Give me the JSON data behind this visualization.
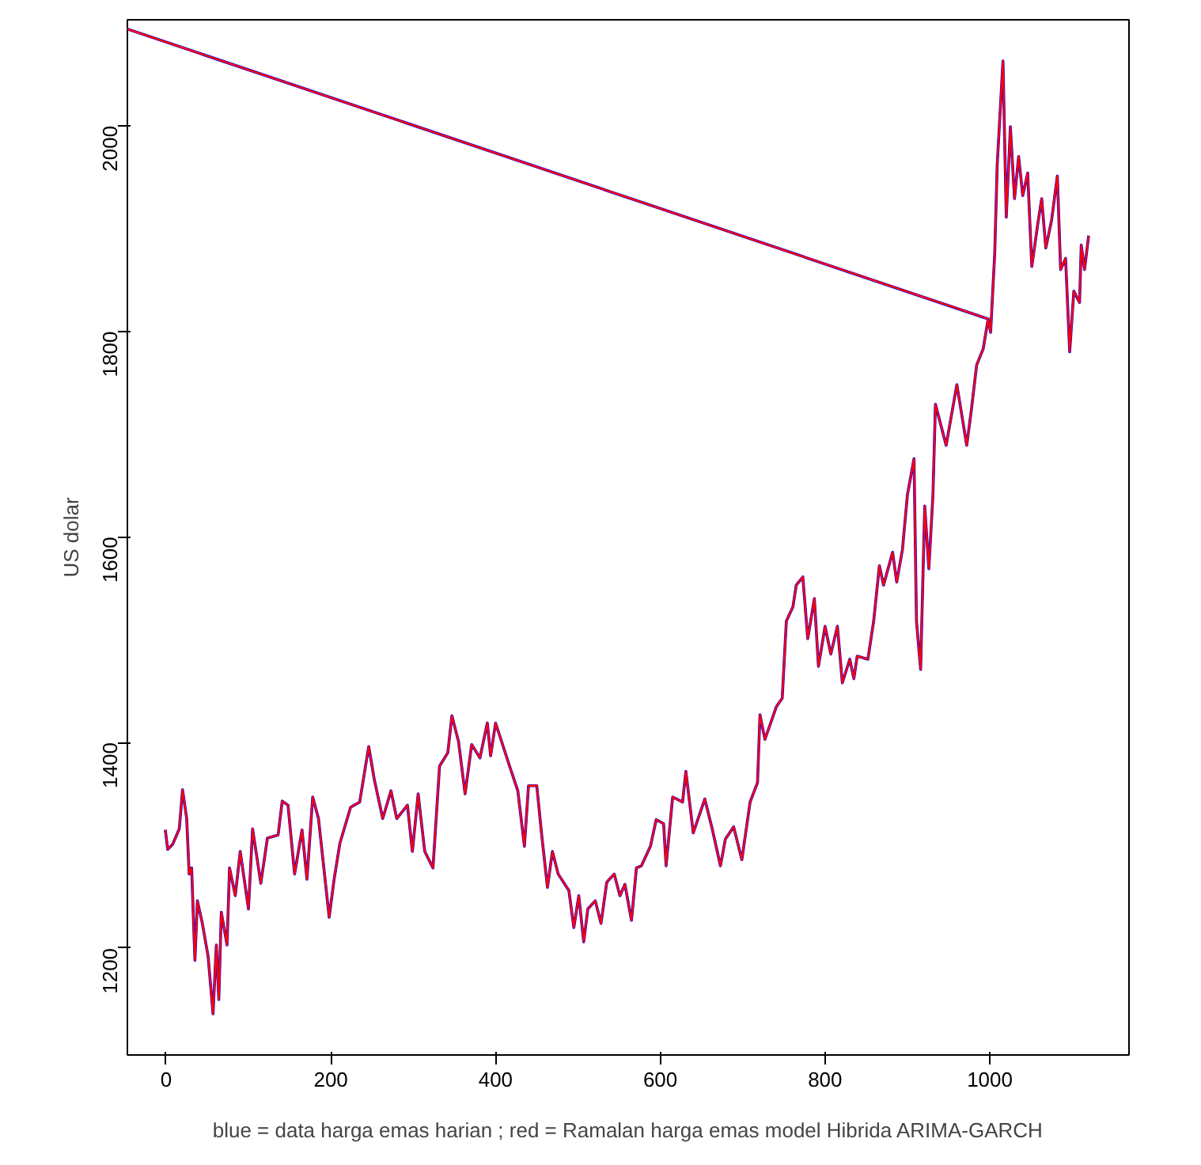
{
  "chart_data": {
    "type": "line",
    "ylabel": "US dolar",
    "annotations": [
      "blue = data harga emas harian ; red = Ramalan harga emas model Hibrida ARIMA-GARCH"
    ],
    "x": [
      -1,
      2,
      8,
      16,
      20,
      25,
      28,
      31,
      35,
      38,
      44,
      51,
      57,
      61,
      64,
      67,
      74,
      77,
      84,
      90,
      100,
      105,
      115,
      123,
      136,
      141,
      148,
      156,
      165,
      171,
      178,
      185,
      198,
      204,
      211,
      224,
      235,
      246,
      253,
      263,
      273,
      280,
      293,
      299,
      306,
      314,
      324,
      332,
      342,
      347,
      355,
      363,
      371,
      381,
      390,
      394,
      400,
      417,
      427,
      435,
      440,
      450,
      456,
      463,
      469,
      476,
      489,
      495,
      501,
      507,
      512,
      521,
      528,
      535,
      544,
      551,
      557,
      565,
      571,
      577,
      588,
      595,
      604,
      607,
      615,
      627,
      631,
      640,
      654,
      663,
      673,
      679,
      689,
      699,
      709,
      718,
      721,
      727,
      741,
      748,
      753,
      761,
      765,
      773,
      779,
      787,
      792,
      800,
      807,
      815,
      821,
      830,
      835,
      839,
      852,
      859,
      866,
      871,
      882,
      887,
      894,
      900,
      908,
      911,
      916,
      921,
      926,
      931,
      934,
      947,
      960,
      972,
      978,
      984,
      992,
      998,
      -47,
      998,
      1001,
      1006,
      1009,
      1016,
      1020,
      1025,
      1030,
      1035,
      1040,
      1046,
      1051,
      1058,
      1063,
      1068,
      1075,
      1082,
      1086,
      1092,
      1097,
      1102,
      1109,
      1111,
      1115,
      1120
    ],
    "series": [
      {
        "color": "#0000ff",
        "values": [
          1315,
          1296,
          1301,
          1316,
          1354,
          1326,
          1272,
          1278,
          1188,
          1246,
          1224,
          1192,
          1136,
          1203,
          1150,
          1235,
          1203,
          1278,
          1251,
          1294,
          1238,
          1316,
          1263,
          1307,
          1310,
          1343,
          1339,
          1272,
          1315,
          1267,
          1347,
          1326,
          1230,
          1267,
          1302,
          1337,
          1342,
          1396,
          1363,
          1326,
          1353,
          1326,
          1339,
          1294,
          1350,
          1294,
          1278,
          1377,
          1390,
          1426,
          1401,
          1350,
          1398,
          1385,
          1419,
          1387,
          1419,
          1377,
          1353,
          1299,
          1358,
          1358,
          1310,
          1259,
          1294,
          1272,
          1256,
          1220,
          1251,
          1206,
          1238,
          1246,
          1224,
          1264,
          1272,
          1251,
          1262,
          1227,
          1278,
          1280,
          1299,
          1325,
          1321,
          1280,
          1347,
          1342,
          1372,
          1312,
          1345,
          1316,
          1280,
          1306,
          1318,
          1286,
          1342,
          1361,
          1427,
          1403,
          1435,
          1443,
          1518,
          1532,
          1553,
          1561,
          1501,
          1540,
          1474,
          1513,
          1486,
          1513,
          1458,
          1481,
          1462,
          1484,
          1481,
          1518,
          1572,
          1553,
          1585,
          1556,
          1588,
          1641,
          1676,
          1518,
          1471,
          1630,
          1569,
          1641,
          1729,
          1689,
          1748,
          1689,
          1726,
          1767,
          1783,
          1812,
          2094,
          1812,
          1799,
          1876,
          1962,
          2063,
          1911,
          1999,
          1929,
          1970,
          1932,
          1954,
          1863,
          1903,
          1929,
          1881,
          1908,
          1951,
          1860,
          1871,
          1780,
          1839,
          1828,
          1884,
          1860,
          1893
        ]
      },
      {
        "color": "#ff0000",
        "values": [
          1315,
          1296,
          1301,
          1316,
          1354,
          1326,
          1272,
          1278,
          1188,
          1246,
          1224,
          1192,
          1136,
          1203,
          1150,
          1235,
          1203,
          1278,
          1251,
          1294,
          1238,
          1316,
          1263,
          1307,
          1310,
          1343,
          1339,
          1272,
          1315,
          1267,
          1347,
          1326,
          1230,
          1267,
          1302,
          1337,
          1342,
          1396,
          1363,
          1326,
          1353,
          1326,
          1339,
          1294,
          1350,
          1294,
          1278,
          1377,
          1390,
          1426,
          1401,
          1350,
          1398,
          1385,
          1419,
          1387,
          1419,
          1377,
          1353,
          1299,
          1358,
          1358,
          1310,
          1259,
          1294,
          1272,
          1256,
          1220,
          1251,
          1206,
          1238,
          1246,
          1224,
          1264,
          1272,
          1251,
          1262,
          1227,
          1278,
          1280,
          1299,
          1325,
          1321,
          1280,
          1347,
          1342,
          1372,
          1312,
          1345,
          1316,
          1280,
          1306,
          1318,
          1286,
          1342,
          1361,
          1427,
          1403,
          1435,
          1443,
          1518,
          1532,
          1553,
          1561,
          1501,
          1540,
          1474,
          1513,
          1486,
          1513,
          1458,
          1481,
          1462,
          1484,
          1481,
          1518,
          1572,
          1553,
          1585,
          1556,
          1588,
          1641,
          1676,
          1518,
          1471,
          1630,
          1569,
          1641,
          1729,
          1689,
          1748,
          1689,
          1726,
          1767,
          1783,
          1812,
          2094,
          1812,
          1799,
          1876,
          1962,
          2063,
          1911,
          1999,
          1929,
          1970,
          1932,
          1954,
          1863,
          1903,
          1929,
          1881,
          1908,
          1951,
          1860,
          1871,
          1780,
          1839,
          1828,
          1884,
          1860,
          1893
        ]
      }
    ],
    "xlim": [
      -47,
      1169
    ],
    "ylim": [
      1096,
      2103
    ],
    "xticks": [
      0,
      200,
      400,
      600,
      800,
      1000
    ],
    "yticks": [
      1200,
      1400,
      1600,
      1800,
      2000
    ],
    "grid": false,
    "line_style": "solid"
  }
}
